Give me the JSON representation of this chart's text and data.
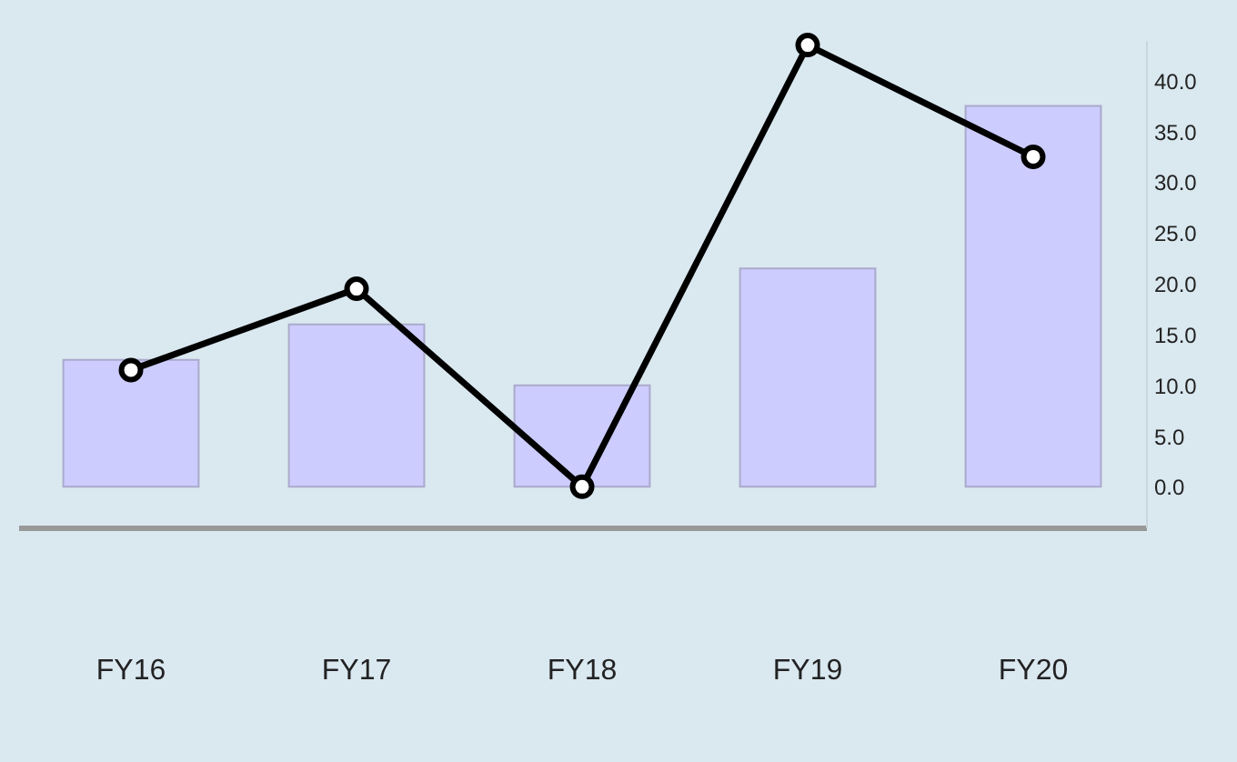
{
  "chart_data": {
    "type": "bar",
    "categories": [
      "FY16",
      "FY17",
      "FY18",
      "FY19",
      "FY20"
    ],
    "series": [
      {
        "color": "#ccccff",
        "values": [
          12.5,
          16.0,
          10.0,
          21.5,
          37.5
        ]
      },
      {
        "type": "line",
        "color": "#000000",
        "values": [
          11.5,
          19.5,
          0.0,
          43.5,
          32.5
        ]
      }
    ],
    "ylim": [
      -4,
      44
    ],
    "yticks": [
      {
        "value": 0,
        "label": "0.0"
      },
      {
        "value": 5,
        "label": "5.0"
      },
      {
        "value": 10,
        "label": "10.0"
      },
      {
        "value": 15,
        "label": "15.0"
      },
      {
        "value": 20,
        "label": "20.0"
      },
      {
        "value": 25,
        "label": "25.0"
      },
      {
        "value": 30,
        "label": "30.0"
      },
      {
        "value": 35,
        "label": "35.0"
      },
      {
        "value": 40,
        "label": "40.0"
      }
    ],
    "marker": "circle",
    "line_style": "solid",
    "grid": false
  }
}
